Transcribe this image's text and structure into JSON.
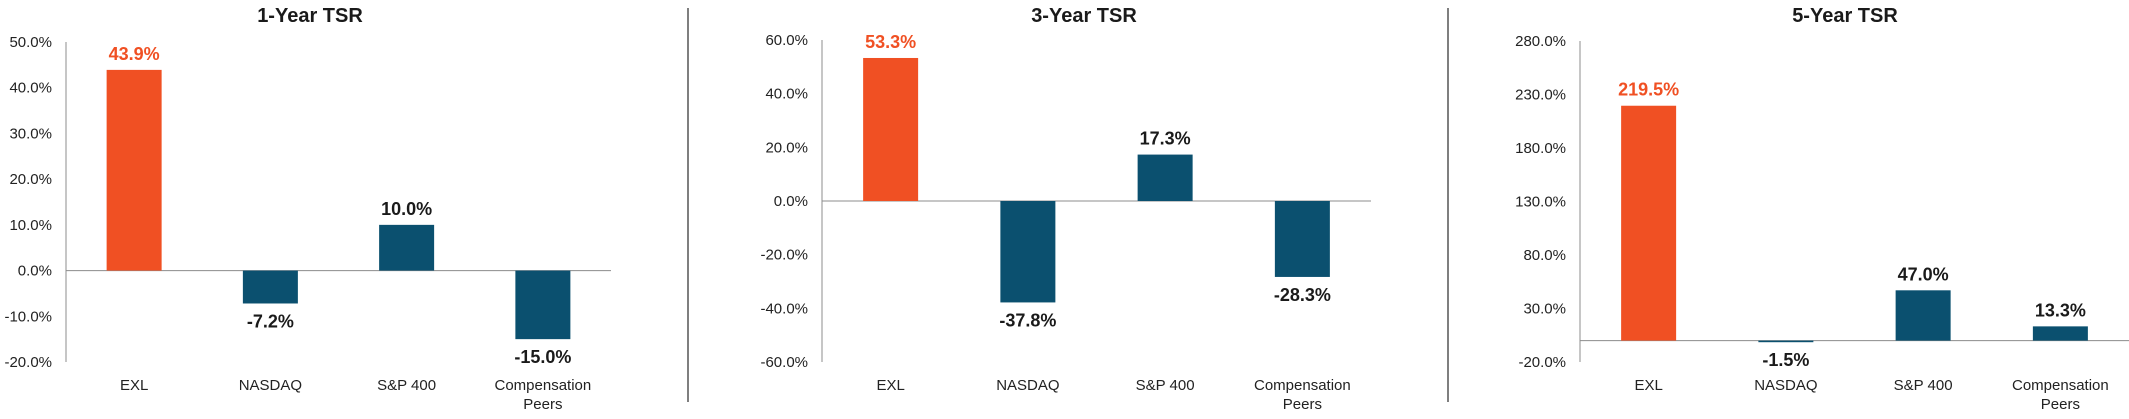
{
  "colors": {
    "highlight": "#F05023",
    "base": "#0B506F",
    "axis": "#8c8c8c",
    "text": "#222222",
    "divider": "#555555"
  },
  "chart_data": [
    {
      "type": "bar",
      "title": "1-Year TSR",
      "categories": [
        "EXL",
        "NASDAQ",
        "S&P 400",
        "Compensation Peers"
      ],
      "values": [
        43.9,
        -7.2,
        10.0,
        -15.0
      ],
      "value_labels": [
        "43.9%",
        "-7.2%",
        "10.0%",
        "-15.0%"
      ],
      "highlight_index": 0,
      "yticks": [
        "50.0%",
        "40.0%",
        "30.0%",
        "20.0%",
        "10.0%",
        "0.0%",
        "-10.0%",
        "-20.0%"
      ],
      "ylim": [
        -20,
        50
      ],
      "ystep": 10,
      "xlabel": "",
      "ylabel": ""
    },
    {
      "type": "bar",
      "title": "3-Year TSR",
      "categories": [
        "EXL",
        "NASDAQ",
        "S&P 400",
        "Compensation Peers"
      ],
      "values": [
        53.3,
        -37.8,
        17.3,
        -28.3
      ],
      "value_labels": [
        "53.3%",
        "-37.8%",
        "17.3%",
        "-28.3%"
      ],
      "highlight_index": 0,
      "yticks": [
        "60.0%",
        "40.0%",
        "20.0%",
        "0.0%",
        "-20.0%",
        "-40.0%",
        "-60.0%"
      ],
      "ylim": [
        -60,
        60
      ],
      "ystep": 20,
      "xlabel": "",
      "ylabel": ""
    },
    {
      "type": "bar",
      "title": "5-Year TSR",
      "categories": [
        "EXL",
        "NASDAQ",
        "S&P 400",
        "Compensation Peers"
      ],
      "values": [
        219.5,
        -1.5,
        47.0,
        13.3
      ],
      "value_labels": [
        "219.5%",
        "-1.5%",
        "47.0%",
        "13.3%"
      ],
      "highlight_index": 0,
      "yticks": [
        "280.0%",
        "230.0%",
        "180.0%",
        "130.0%",
        "80.0%",
        "30.0%",
        "-20.0%"
      ],
      "ylim": [
        -20,
        280
      ],
      "ystep": 50,
      "xlabel": "",
      "ylabel": ""
    }
  ]
}
